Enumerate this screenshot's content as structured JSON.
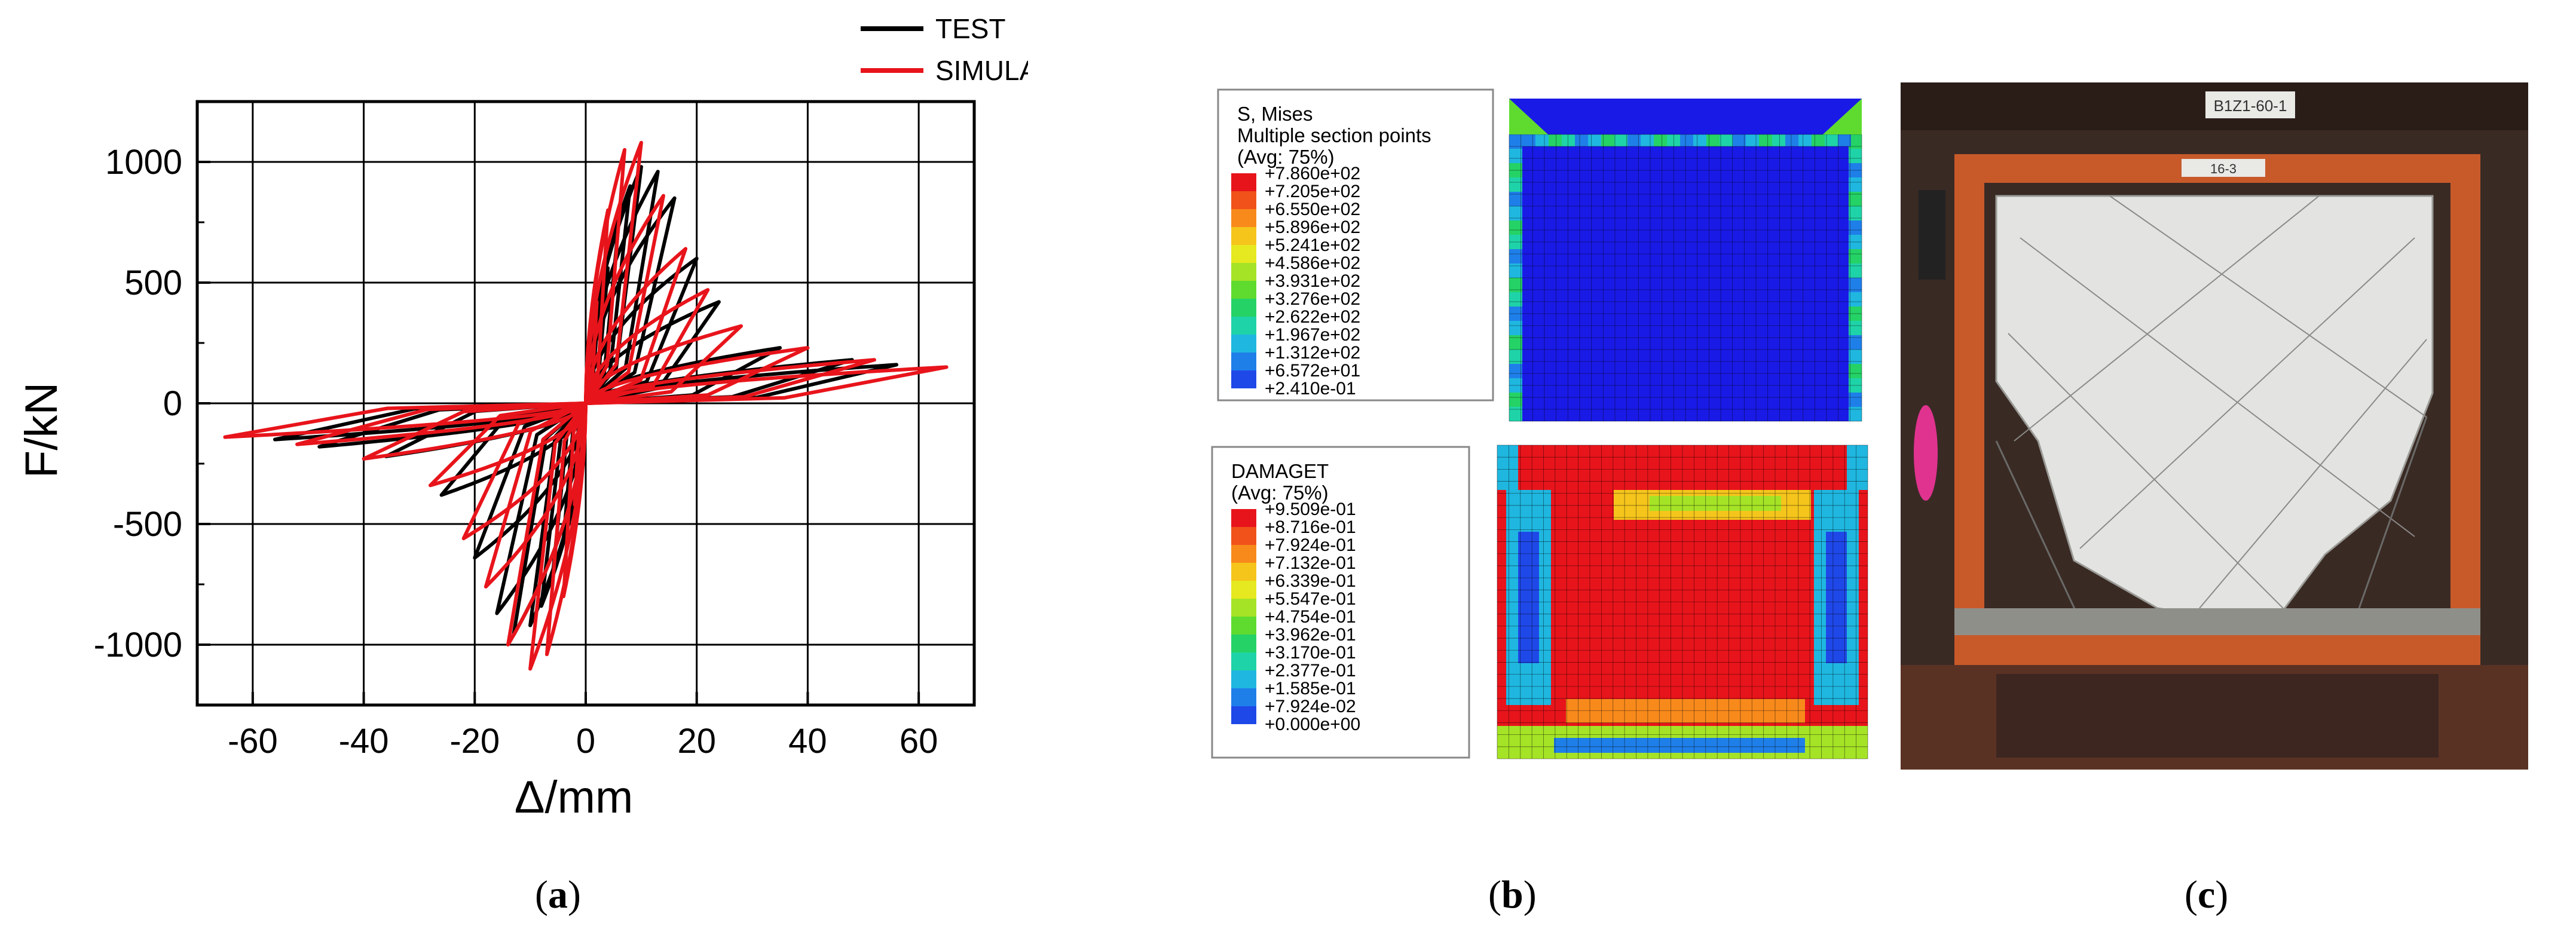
{
  "colors": {
    "test": "#000000",
    "simulation": "#e8141b"
  },
  "chart_data": {
    "type": "line",
    "title": "",
    "xlabel": "Δ/mm",
    "ylabel": "F/kN",
    "xlim": [
      -70,
      70
    ],
    "ylim": [
      -1250,
      1250
    ],
    "xticks": [
      "-60",
      "-40",
      "-20",
      "0",
      "20",
      "40",
      "60"
    ],
    "yticks": [
      "1000",
      "500",
      "0",
      "-500",
      "-1000"
    ],
    "xtick_values": [
      -60,
      -40,
      -20,
      0,
      20,
      40,
      60
    ],
    "ytick_values": [
      1000,
      500,
      0,
      -500,
      -1000
    ],
    "grid": true,
    "legend_position": "top-right",
    "series": [
      {
        "name": "TEST",
        "color": "#000000",
        "loops": [
          {
            "dmax": 2,
            "fmax": 300,
            "dmin": -2,
            "fmin": -300
          },
          {
            "dmax": 4,
            "fmax": 560,
            "dmin": -4,
            "fmin": -560
          },
          {
            "dmax": 6,
            "fmax": 760,
            "dmin": -6,
            "fmin": -720
          },
          {
            "dmax": 8,
            "fmax": 900,
            "dmin": -8,
            "fmin": -840
          },
          {
            "dmax": 10,
            "fmax": 980,
            "dmin": -10,
            "fmin": -920
          },
          {
            "dmax": 13,
            "fmax": 960,
            "dmin": -13,
            "fmin": -960
          },
          {
            "dmax": 16,
            "fmax": 850,
            "dmin": -16,
            "fmin": -870
          },
          {
            "dmax": 20,
            "fmax": 600,
            "dmin": -20,
            "fmin": -640
          },
          {
            "dmax": 24,
            "fmax": 420,
            "dmin": -26,
            "fmin": -380
          },
          {
            "dmax": 35,
            "fmax": 230,
            "dmin": -36,
            "fmin": -220
          },
          {
            "dmax": 48,
            "fmax": 180,
            "dmin": -48,
            "fmin": -180
          },
          {
            "dmax": 56,
            "fmax": 160,
            "dmin": -56,
            "fmin": -150
          }
        ]
      },
      {
        "name": "SIMULATION",
        "color": "#e8141b",
        "loops": [
          {
            "dmax": 2,
            "fmax": 420,
            "dmin": -2,
            "fmin": -420
          },
          {
            "dmax": 4,
            "fmax": 800,
            "dmin": -4,
            "fmin": -800
          },
          {
            "dmax": 7,
            "fmax": 1050,
            "dmin": -7,
            "fmin": -1040
          },
          {
            "dmax": 10,
            "fmax": 1080,
            "dmin": -10,
            "fmin": -1100
          },
          {
            "dmax": 14,
            "fmax": 860,
            "dmin": -14,
            "fmin": -1000
          },
          {
            "dmax": 18,
            "fmax": 640,
            "dmin": -18,
            "fmin": -760
          },
          {
            "dmax": 22,
            "fmax": 470,
            "dmin": -22,
            "fmin": -560
          },
          {
            "dmax": 28,
            "fmax": 320,
            "dmin": -28,
            "fmin": -340
          },
          {
            "dmax": 40,
            "fmax": 230,
            "dmin": -40,
            "fmin": -230
          },
          {
            "dmax": 52,
            "fmax": 180,
            "dmin": -52,
            "fmin": -170
          },
          {
            "dmax": 65,
            "fmax": 150,
            "dmin": -65,
            "fmin": -140
          }
        ]
      }
    ]
  },
  "panel_b": {
    "mises_legend": {
      "title": "S, Mises",
      "subtitle": "Multiple section points",
      "avg": "(Avg: 75%)",
      "values": [
        "+7.860e+02",
        "+7.205e+02",
        "+6.550e+02",
        "+5.896e+02",
        "+5.241e+02",
        "+4.586e+02",
        "+3.931e+02",
        "+3.276e+02",
        "+2.622e+02",
        "+1.967e+02",
        "+1.312e+02",
        "+6.572e+01",
        "+2.410e-01"
      ]
    },
    "damage_legend": {
      "title": "DAMAGET",
      "avg": "(Avg: 75%)",
      "values": [
        "+9.509e-01",
        "+8.716e-01",
        "+7.924e-01",
        "+7.132e-01",
        "+6.339e-01",
        "+5.547e-01",
        "+4.754e-01",
        "+3.962e-01",
        "+3.170e-01",
        "+2.377e-01",
        "+1.585e-01",
        "+7.924e-02",
        "+0.000e+00"
      ]
    },
    "colormap": [
      "#e8141b",
      "#f0521a",
      "#f88a1c",
      "#f5c51c",
      "#e6e91f",
      "#a5e326",
      "#5fdb2f",
      "#25d266",
      "#1fd3a8",
      "#1fb7e0",
      "#1f7fe9",
      "#1f48e8",
      "#1a1ae6"
    ]
  },
  "panel_c": {
    "label_top": "B1Z1-60-1",
    "label_small": "16-3"
  },
  "captions": [
    {
      "letter": "a",
      "open": "(",
      "close": ")"
    },
    {
      "letter": "b",
      "open": "(",
      "close": ")"
    },
    {
      "letter": "c",
      "open": "(",
      "close": ")"
    }
  ]
}
